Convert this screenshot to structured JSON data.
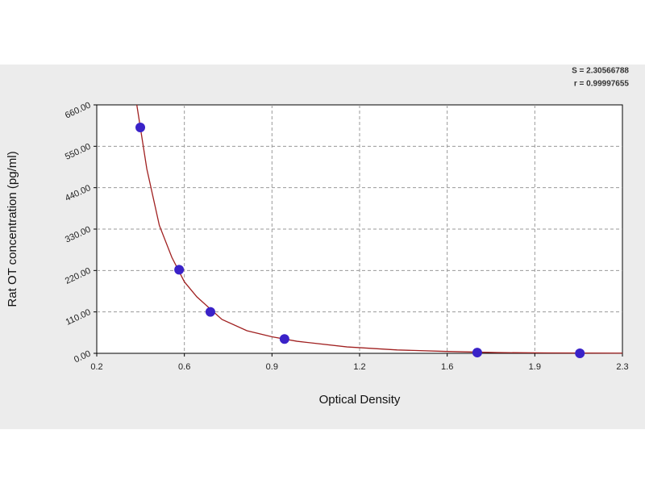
{
  "chart_data": {
    "type": "scatter",
    "stats": [
      "S = 2.30566788",
      "r = 0.99997655"
    ],
    "x_label": "Optical Density",
    "y_label": "Rat OT concentration (pg/ml)",
    "x": [
      0.374,
      0.529,
      0.654,
      0.95,
      1.72,
      2.13
    ],
    "values": [
      600,
      222,
      110,
      38,
      2,
      0
    ],
    "color": "#3a22c8",
    "curve": {
      "color": "#a02020",
      "x": [
        0.36,
        0.4,
        0.45,
        0.5,
        0.55,
        0.6,
        0.7,
        0.8,
        0.9,
        1.0,
        1.2,
        1.4,
        1.6,
        1.8,
        2.0,
        2.3
      ],
      "values": [
        660,
        490,
        340,
        255,
        190,
        150,
        90,
        60,
        44,
        32,
        17,
        9,
        5,
        2,
        1,
        0.5
      ]
    },
    "xlim": [
      0.2,
      2.3
    ],
    "xticks": [
      0.2,
      {
        "value": 0.55,
        "label": "0.6"
      },
      0.9,
      {
        "value": 1.25,
        "label": "1.2"
      },
      1.6,
      {
        "value": 1.95,
        "label": "1.9"
      },
      2.3
    ],
    "ylim": [
      0,
      660
    ],
    "yticks": [
      {
        "value": 0,
        "label": "0.00"
      },
      {
        "value": 110,
        "label": "110.00"
      },
      {
        "value": 220,
        "label": "220.00"
      },
      {
        "value": 330,
        "label": "330.00"
      },
      {
        "value": 440,
        "label": "440.00"
      },
      {
        "value": 550,
        "label": "550.00"
      },
      {
        "value": 660,
        "label": "660.00"
      }
    ],
    "grid": true
  }
}
